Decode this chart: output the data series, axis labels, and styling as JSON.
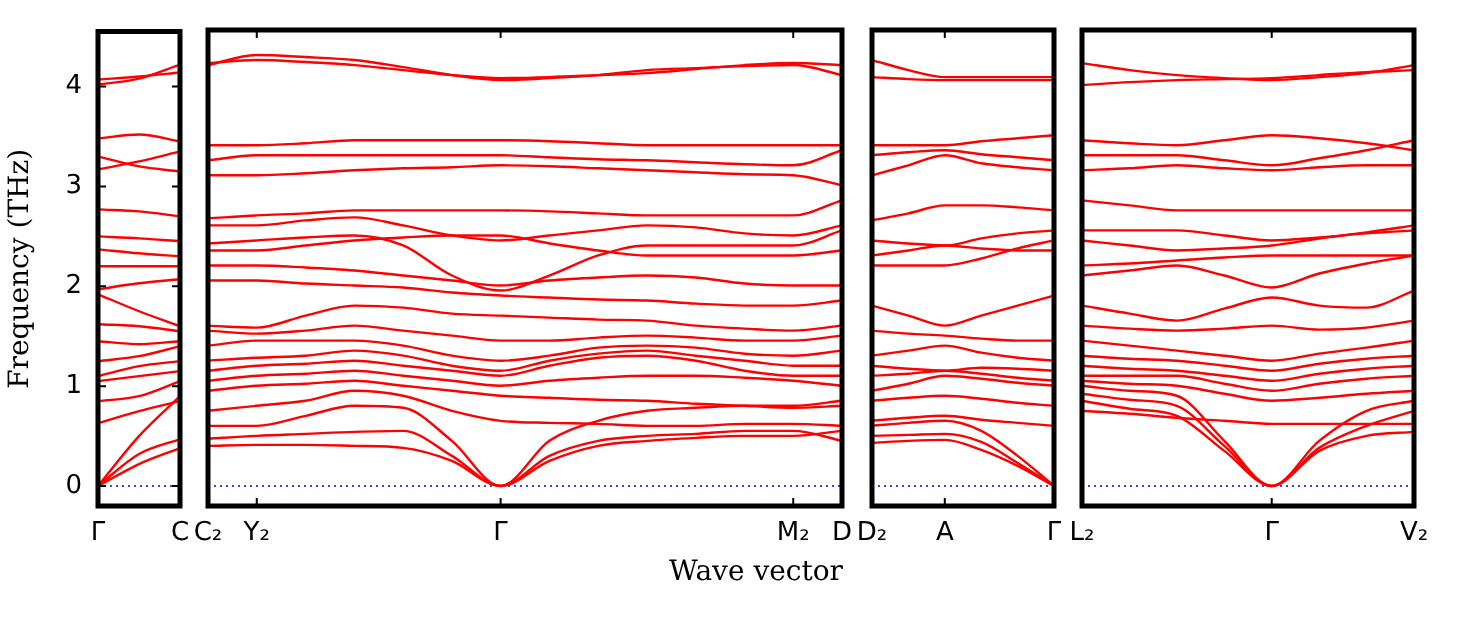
{
  "chart_data": [
    {
      "type": "line",
      "ylabel": "Frequency (THz)",
      "categories": [
        "Γ",
        null,
        "C"
      ],
      "ylim": [
        -0.2,
        4.55
      ],
      "yticks": [
        0,
        1,
        2,
        3,
        4
      ],
      "grid": false,
      "legend": false,
      "marker": "none",
      "line_style": "solid",
      "ref_lines": [
        {
          "axis": "y",
          "value": 0,
          "color": "#0000ff",
          "line_style": "dotted"
        }
      ],
      "series": [
        {
          "color": "#ff0000",
          "values": [
            0,
            0.22,
            0.38
          ]
        },
        {
          "color": "#ff0000",
          "values": [
            0,
            0.32,
            0.47
          ]
        },
        {
          "color": "#ff0000",
          "values": [
            0,
            0.5,
            0.9
          ]
        },
        {
          "color": "#ff0000",
          "values": [
            0.63,
            0.75,
            0.85
          ]
        },
        {
          "color": "#ff0000",
          "values": [
            0.85,
            0.9,
            1.05
          ]
        },
        {
          "color": "#ff0000",
          "values": [
            1.05,
            1.1,
            1.15
          ]
        },
        {
          "color": "#ff0000",
          "values": [
            1.1,
            1.2,
            1.25
          ]
        },
        {
          "color": "#ff0000",
          "values": [
            1.25,
            1.3,
            1.4
          ]
        },
        {
          "color": "#ff0000",
          "values": [
            1.45,
            1.42,
            1.45
          ]
        },
        {
          "color": "#ff0000",
          "values": [
            1.62,
            1.6,
            1.55
          ]
        },
        {
          "color": "#ff0000",
          "values": [
            1.92,
            1.75,
            1.6
          ]
        },
        {
          "color": "#ff0000",
          "values": [
            1.97,
            2.03,
            2.07
          ]
        },
        {
          "color": "#ff0000",
          "values": [
            2.2,
            2.2,
            2.2
          ]
        },
        {
          "color": "#ff0000",
          "values": [
            2.37,
            2.33,
            2.3
          ]
        },
        {
          "color": "#ff0000",
          "values": [
            2.5,
            2.48,
            2.45
          ]
        },
        {
          "color": "#ff0000",
          "values": [
            2.77,
            2.75,
            2.7
          ]
        },
        {
          "color": "#ff0000",
          "values": [
            3.17,
            3.25,
            3.35
          ]
        },
        {
          "color": "#ff0000",
          "values": [
            3.3,
            3.2,
            3.15
          ]
        },
        {
          "color": "#ff0000",
          "values": [
            3.48,
            3.52,
            3.45
          ]
        },
        {
          "color": "#ff0000",
          "values": [
            4.02,
            4.08,
            4.22
          ]
        },
        {
          "color": "#ff0000",
          "values": [
            4.07,
            4.1,
            4.14
          ]
        }
      ]
    },
    {
      "type": "line",
      "xlabel": "Wave vector",
      "categories": [
        "C₂",
        "Y₂",
        null,
        null,
        null,
        null,
        "Γ",
        null,
        null,
        null,
        null,
        null,
        "M₂",
        "D"
      ],
      "ylim": [
        -0.2,
        4.55
      ],
      "tick_labels": "x",
      "grid": false,
      "legend": false,
      "marker": "none",
      "line_style": "solid",
      "ref_lines": [
        {
          "axis": "y",
          "value": 0,
          "color": "#0000ff",
          "line_style": "dotted"
        }
      ],
      "series": [
        {
          "color": "#ff0000",
          "values": [
            0.4,
            0.41,
            0.41,
            0.4,
            0.38,
            0.25,
            0,
            0.25,
            0.4,
            0.45,
            0.48,
            0.5,
            0.5,
            0.55
          ]
        },
        {
          "color": "#ff0000",
          "values": [
            0.47,
            0.5,
            0.52,
            0.54,
            0.55,
            0.3,
            0,
            0.3,
            0.45,
            0.5,
            0.52,
            0.55,
            0.55,
            0.45
          ]
        },
        {
          "color": "#ff0000",
          "values": [
            0.6,
            0.6,
            0.7,
            0.8,
            0.78,
            0.45,
            0,
            0.45,
            0.65,
            0.75,
            0.78,
            0.8,
            0.8,
            0.85
          ]
        },
        {
          "color": "#ff0000",
          "values": [
            0.75,
            0.8,
            0.85,
            0.95,
            0.9,
            0.75,
            0.65,
            0.63,
            0.62,
            0.6,
            0.6,
            0.62,
            0.62,
            0.6
          ]
        },
        {
          "color": "#ff0000",
          "values": [
            0.95,
            1,
            1.02,
            1.05,
            1,
            0.95,
            0.9,
            0.88,
            0.86,
            0.85,
            0.82,
            0.8,
            0.78,
            0.8
          ]
        },
        {
          "color": "#ff0000",
          "values": [
            1.05,
            1.1,
            1.12,
            1.15,
            1.1,
            1.05,
            1,
            1.05,
            1.08,
            1.1,
            1.1,
            1.08,
            1.05,
            1
          ]
        },
        {
          "color": "#ff0000",
          "values": [
            1.15,
            1.2,
            1.22,
            1.25,
            1.2,
            1.15,
            1.1,
            1.2,
            1.28,
            1.3,
            1.25,
            1.15,
            1.1,
            1.1
          ]
        },
        {
          "color": "#ff0000",
          "values": [
            1.25,
            1.28,
            1.3,
            1.35,
            1.3,
            1.2,
            1.15,
            1.25,
            1.32,
            1.35,
            1.3,
            1.25,
            1.2,
            1.2
          ]
        },
        {
          "color": "#ff0000",
          "values": [
            1.4,
            1.45,
            1.45,
            1.45,
            1.4,
            1.3,
            1.25,
            1.3,
            1.38,
            1.4,
            1.38,
            1.32,
            1.3,
            1.35
          ]
        },
        {
          "color": "#ff0000",
          "values": [
            1.55,
            1.52,
            1.55,
            1.6,
            1.55,
            1.5,
            1.45,
            1.45,
            1.48,
            1.5,
            1.48,
            1.45,
            1.45,
            1.5
          ]
        },
        {
          "color": "#ff0000",
          "values": [
            1.6,
            1.58,
            1.7,
            1.8,
            1.78,
            1.72,
            1.7,
            1.68,
            1.66,
            1.65,
            1.6,
            1.57,
            1.55,
            1.6
          ]
        },
        {
          "color": "#ff0000",
          "values": [
            2.05,
            2.05,
            2.02,
            2,
            1.98,
            1.93,
            1.9,
            1.88,
            1.86,
            1.85,
            1.82,
            1.8,
            1.8,
            1.85
          ]
        },
        {
          "color": "#ff0000",
          "values": [
            2.2,
            2.2,
            2.18,
            2.15,
            2.1,
            2.05,
            2,
            2.05,
            2.08,
            2.1,
            2.08,
            2.02,
            2,
            2
          ]
        },
        {
          "color": "#ff0000",
          "values": [
            2.35,
            2.35,
            2.4,
            2.45,
            2.48,
            2.5,
            2.5,
            2.42,
            2.35,
            2.3,
            2.3,
            2.3,
            2.3,
            2.35
          ]
        },
        {
          "color": "#ff0000",
          "values": [
            2.42,
            2.45,
            2.48,
            2.5,
            2.4,
            2.1,
            1.95,
            2.1,
            2.3,
            2.4,
            2.4,
            2.4,
            2.4,
            2.55
          ]
        },
        {
          "color": "#ff0000",
          "values": [
            2.6,
            2.6,
            2.65,
            2.68,
            2.6,
            2.5,
            2.45,
            2.5,
            2.55,
            2.6,
            2.58,
            2.52,
            2.5,
            2.6
          ]
        },
        {
          "color": "#ff0000",
          "values": [
            2.67,
            2.7,
            2.72,
            2.75,
            2.75,
            2.75,
            2.75,
            2.74,
            2.72,
            2.7,
            2.7,
            2.7,
            2.7,
            2.85
          ]
        },
        {
          "color": "#ff0000",
          "values": [
            3.1,
            3.1,
            3.12,
            3.15,
            3.17,
            3.18,
            3.2,
            3.19,
            3.17,
            3.15,
            3.13,
            3.11,
            3.1,
            3
          ]
        },
        {
          "color": "#ff0000",
          "values": [
            3.25,
            3.3,
            3.3,
            3.3,
            3.3,
            3.3,
            3.3,
            3.28,
            3.26,
            3.25,
            3.23,
            3.21,
            3.2,
            3.35
          ]
        },
        {
          "color": "#ff0000",
          "values": [
            3.4,
            3.4,
            3.42,
            3.45,
            3.45,
            3.45,
            3.45,
            3.44,
            3.42,
            3.4,
            3.4,
            3.4,
            3.4,
            3.4
          ]
        },
        {
          "color": "#ff0000",
          "values": [
            4.2,
            4.3,
            4.28,
            4.25,
            4.18,
            4.1,
            4.05,
            4.07,
            4.1,
            4.15,
            4.17,
            4.19,
            4.2,
            4.1
          ]
        },
        {
          "color": "#ff0000",
          "values": [
            4.22,
            4.25,
            4.23,
            4.2,
            4.15,
            4.1,
            4.07,
            4.08,
            4.1,
            4.12,
            4.16,
            4.2,
            4.22,
            4.2
          ]
        }
      ]
    },
    {
      "type": "line",
      "categories": [
        "D₂",
        null,
        "A",
        null,
        null,
        "Γ"
      ],
      "ylim": [
        -0.2,
        4.55
      ],
      "tick_labels": "x",
      "grid": false,
      "legend": false,
      "marker": "none",
      "line_style": "solid",
      "ref_lines": [
        {
          "axis": "y",
          "value": 0,
          "color": "#0000ff",
          "line_style": "dotted"
        }
      ],
      "series": [
        {
          "color": "#ff0000",
          "values": [
            0.43,
            0.45,
            0.46,
            0.36,
            0.2,
            0
          ]
        },
        {
          "color": "#ff0000",
          "values": [
            0.5,
            0.51,
            0.52,
            0.44,
            0.23,
            0
          ]
        },
        {
          "color": "#ff0000",
          "values": [
            0.6,
            0.63,
            0.65,
            0.55,
            0.3,
            0
          ]
        },
        {
          "color": "#ff0000",
          "values": [
            0.65,
            0.68,
            0.7,
            0.66,
            0.63,
            0.6
          ]
        },
        {
          "color": "#ff0000",
          "values": [
            0.85,
            0.88,
            0.9,
            0.87,
            0.83,
            0.8
          ]
        },
        {
          "color": "#ff0000",
          "values": [
            0.95,
            1.02,
            1.1,
            1.07,
            1.03,
            1
          ]
        },
        {
          "color": "#ff0000",
          "values": [
            1.1,
            1.12,
            1.15,
            1.12,
            1.08,
            1.05
          ]
        },
        {
          "color": "#ff0000",
          "values": [
            1.2,
            1.17,
            1.15,
            1.18,
            1.17,
            1.15
          ]
        },
        {
          "color": "#ff0000",
          "values": [
            1.3,
            1.35,
            1.4,
            1.33,
            1.28,
            1.25
          ]
        },
        {
          "color": "#ff0000",
          "values": [
            1.55,
            1.52,
            1.5,
            1.47,
            1.45,
            1.45
          ]
        },
        {
          "color": "#ff0000",
          "values": [
            1.8,
            1.7,
            1.6,
            1.7,
            1.8,
            1.9
          ]
        },
        {
          "color": "#ff0000",
          "values": [
            2.2,
            2.2,
            2.2,
            2.27,
            2.37,
            2.45
          ]
        },
        {
          "color": "#ff0000",
          "values": [
            2.3,
            2.35,
            2.4,
            2.37,
            2.35,
            2.35
          ]
        },
        {
          "color": "#ff0000",
          "values": [
            2.45,
            2.42,
            2.4,
            2.47,
            2.52,
            2.55
          ]
        },
        {
          "color": "#ff0000",
          "values": [
            2.65,
            2.72,
            2.8,
            2.8,
            2.78,
            2.75
          ]
        },
        {
          "color": "#ff0000",
          "values": [
            3.1,
            3.2,
            3.3,
            3.22,
            3.18,
            3.15
          ]
        },
        {
          "color": "#ff0000",
          "values": [
            3.3,
            3.33,
            3.35,
            3.31,
            3.28,
            3.25
          ]
        },
        {
          "color": "#ff0000",
          "values": [
            3.4,
            3.4,
            3.4,
            3.44,
            3.47,
            3.5
          ]
        },
        {
          "color": "#ff0000",
          "values": [
            4.25,
            4.15,
            4.08,
            4.08,
            4.08,
            4.08
          ]
        },
        {
          "color": "#ff0000",
          "values": [
            4.08,
            4.06,
            4.05,
            4.05,
            4.05,
            4.05
          ]
        }
      ]
    },
    {
      "type": "line",
      "categories": [
        "L₂",
        null,
        null,
        null,
        "Γ",
        null,
        null,
        "V₂"
      ],
      "ylim": [
        -0.2,
        4.55
      ],
      "tick_labels": "x",
      "grid": false,
      "legend": false,
      "marker": "none",
      "line_style": "solid",
      "ref_lines": [
        {
          "axis": "y",
          "value": 0,
          "color": "#0000ff",
          "line_style": "dotted"
        }
      ],
      "series": [
        {
          "color": "#ff0000",
          "values": [
            0.85,
            0.77,
            0.7,
            0.35,
            0,
            0.35,
            0.5,
            0.54
          ]
        },
        {
          "color": "#ff0000",
          "values": [
            0.92,
            0.86,
            0.8,
            0.4,
            0,
            0.38,
            0.6,
            0.75
          ]
        },
        {
          "color": "#ff0000",
          "values": [
            1,
            0.95,
            0.9,
            0.45,
            0,
            0.45,
            0.75,
            0.85
          ]
        },
        {
          "color": "#ff0000",
          "values": [
            0.75,
            0.72,
            0.68,
            0.65,
            0.62,
            0.62,
            0.62,
            0.62
          ]
        },
        {
          "color": "#ff0000",
          "values": [
            1.05,
            1.02,
            1,
            0.92,
            0.85,
            0.88,
            0.92,
            0.95
          ]
        },
        {
          "color": "#ff0000",
          "values": [
            1.1,
            1.1,
            1.1,
            1.02,
            0.95,
            1.02,
            1.07,
            1.1
          ]
        },
        {
          "color": "#ff0000",
          "values": [
            1.2,
            1.17,
            1.15,
            1.1,
            1.05,
            1.12,
            1.17,
            1.2
          ]
        },
        {
          "color": "#ff0000",
          "values": [
            1.3,
            1.27,
            1.25,
            1.2,
            1.15,
            1.22,
            1.27,
            1.3
          ]
        },
        {
          "color": "#ff0000",
          "values": [
            1.45,
            1.4,
            1.35,
            1.3,
            1.25,
            1.32,
            1.38,
            1.45
          ]
        },
        {
          "color": "#ff0000",
          "values": [
            1.6,
            1.57,
            1.55,
            1.57,
            1.6,
            1.56,
            1.58,
            1.65
          ]
        },
        {
          "color": "#ff0000",
          "values": [
            1.8,
            1.72,
            1.65,
            1.77,
            1.88,
            1.8,
            1.78,
            1.95
          ]
        },
        {
          "color": "#ff0000",
          "values": [
            2.1,
            2.15,
            2.2,
            2.1,
            1.98,
            2.12,
            2.22,
            2.3
          ]
        },
        {
          "color": "#ff0000",
          "values": [
            2.2,
            2.22,
            2.25,
            2.28,
            2.3,
            2.3,
            2.3,
            2.3
          ]
        },
        {
          "color": "#ff0000",
          "values": [
            2.45,
            2.4,
            2.35,
            2.37,
            2.4,
            2.47,
            2.53,
            2.6
          ]
        },
        {
          "color": "#ff0000",
          "values": [
            2.55,
            2.55,
            2.55,
            2.5,
            2.45,
            2.48,
            2.52,
            2.55
          ]
        },
        {
          "color": "#ff0000",
          "values": [
            2.85,
            2.8,
            2.75,
            2.75,
            2.75,
            2.75,
            2.75,
            2.75
          ]
        },
        {
          "color": "#ff0000",
          "values": [
            3.15,
            3.17,
            3.2,
            3.17,
            3.15,
            3.18,
            3.2,
            3.2
          ]
        },
        {
          "color": "#ff0000",
          "values": [
            3.3,
            3.3,
            3.3,
            3.25,
            3.2,
            3.27,
            3.35,
            3.45
          ]
        },
        {
          "color": "#ff0000",
          "values": [
            3.45,
            3.42,
            3.4,
            3.45,
            3.5,
            3.47,
            3.42,
            3.35
          ]
        },
        {
          "color": "#ff0000",
          "values": [
            4.22,
            4.15,
            4.1,
            4.07,
            4.05,
            4.08,
            4.12,
            4.2
          ]
        },
        {
          "color": "#ff0000",
          "values": [
            4,
            4.03,
            4.05,
            4.06,
            4.07,
            4.1,
            4.13,
            4.15
          ]
        }
      ]
    }
  ]
}
